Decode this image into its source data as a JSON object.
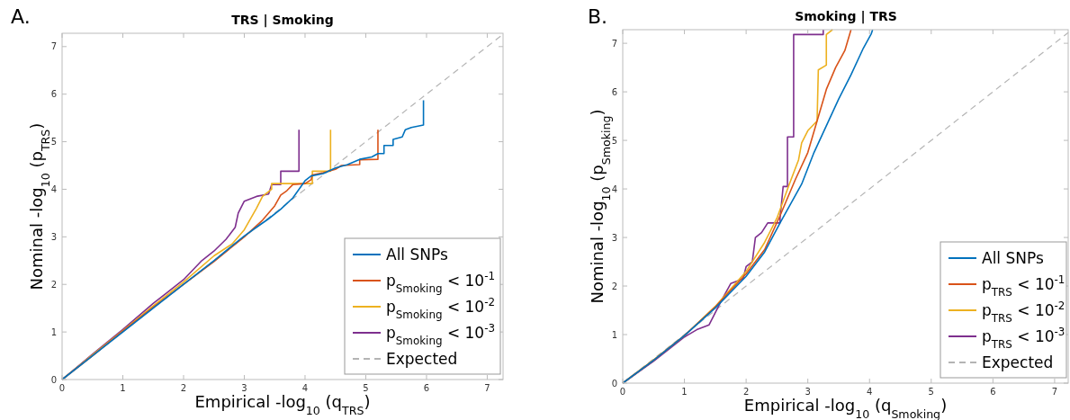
{
  "chart_data": [
    {
      "type": "step",
      "title": "TRS | Smoking",
      "xlabel": "Empirical -log$_{10}$ (q$_{TRS}$)",
      "ylabel": "Nominal -log$_{10}$ (p$_{TRS}$)",
      "annotations": [
        "A."
      ],
      "xlim": [
        0,
        7.26
      ],
      "ylim": [
        0,
        7.28
      ],
      "xticks": [
        0,
        1,
        2,
        3,
        4,
        5,
        6,
        7
      ],
      "yticks": [
        0,
        1,
        2,
        3,
        4,
        5,
        6,
        7
      ],
      "legend": "bottom right",
      "series": [
        {
          "name": "All SNPs",
          "color": "#0072bd",
          "x": [
            0,
            0.5,
            1,
            1.5,
            2,
            2.5,
            3,
            3.2,
            3.4,
            3.6,
            3.8,
            3.9,
            4.0,
            4.1,
            4.3,
            4.5,
            4.7,
            4.9,
            5.1,
            5.2,
            5.3,
            5.3,
            5.45,
            5.45,
            5.6,
            5.65,
            5.75,
            5.95,
            5.95
          ],
          "values": [
            0,
            0.5,
            1,
            1.5,
            2,
            2.5,
            3.02,
            3.2,
            3.38,
            3.58,
            3.82,
            4.0,
            4.18,
            4.28,
            4.33,
            4.45,
            4.52,
            4.63,
            4.68,
            4.75,
            4.75,
            4.92,
            4.92,
            5.05,
            5.1,
            5.25,
            5.3,
            5.35,
            5.87
          ]
        },
        {
          "name": "p$_{Smoking}$ < 10$^{-1}$",
          "color": "#d95319",
          "x": [
            0,
            0.5,
            1,
            1.5,
            2,
            2.5,
            3,
            3.3,
            3.5,
            3.6,
            3.7,
            3.8,
            4.0,
            4.1,
            4.12,
            4.3,
            4.5,
            4.6,
            4.9,
            4.9,
            5.2,
            5.2
          ],
          "values": [
            0,
            0.5,
            1.02,
            1.52,
            2.0,
            2.48,
            3.0,
            3.35,
            3.65,
            3.88,
            3.97,
            4.1,
            4.12,
            4.2,
            4.3,
            4.35,
            4.42,
            4.5,
            4.52,
            4.62,
            4.63,
            5.25
          ]
        },
        {
          "name": "p$_{Smoking}$ < 10$^{-2}$",
          "color": "#edb120",
          "x": [
            0,
            0.5,
            1,
            1.5,
            2,
            2.5,
            2.8,
            3.0,
            3.2,
            3.3,
            3.45,
            3.45,
            4.12,
            4.12,
            4.42,
            4.42
          ],
          "values": [
            0,
            0.52,
            1.03,
            1.55,
            2.05,
            2.6,
            2.85,
            3.15,
            3.6,
            3.85,
            4.0,
            4.12,
            4.12,
            4.38,
            4.38,
            5.25
          ]
        },
        {
          "name": "p$_{Smoking}$ < 10$^{-3}$",
          "color": "#7e2f8e",
          "x": [
            0,
            0.5,
            1,
            1.5,
            1.7,
            2,
            2.3,
            2.5,
            2.7,
            2.85,
            2.9,
            3.0,
            3.2,
            3.4,
            3.45,
            3.6,
            3.6,
            3.9,
            3.9
          ],
          "values": [
            0,
            0.53,
            1.05,
            1.6,
            1.8,
            2.1,
            2.5,
            2.7,
            2.95,
            3.2,
            3.5,
            3.75,
            3.85,
            3.9,
            4.1,
            4.1,
            4.38,
            4.38,
            5.25
          ]
        },
        {
          "name": "Expected",
          "color": "#b4b4b4",
          "line_style": "dashed",
          "x": [
            0,
            7.26
          ],
          "values": [
            0,
            7.26
          ]
        }
      ]
    },
    {
      "type": "step",
      "title": "Smoking | TRS",
      "xlabel": "Empirical -log$_{10}$ (q$_{Smoking}$)",
      "ylabel": "Nominal -log$_{10}$ (p$_{Smoking}$)",
      "annotations": [
        "B."
      ],
      "xlim": [
        0,
        7.22
      ],
      "ylim": [
        0,
        7.28
      ],
      "xticks": [
        0,
        1,
        2,
        3,
        4,
        5,
        6,
        7
      ],
      "yticks": [
        0,
        1,
        2,
        3,
        4,
        5,
        6,
        7
      ],
      "legend": "bottom right",
      "series": [
        {
          "name": "All SNPs",
          "color": "#0072bd",
          "x": [
            0,
            0.5,
            1,
            1.5,
            2,
            2.3,
            2.55,
            2.9,
            3.1,
            3.3,
            3.5,
            3.7,
            3.9,
            4.03,
            4.05
          ],
          "values": [
            0,
            0.47,
            0.98,
            1.55,
            2.2,
            2.7,
            3.3,
            4.1,
            4.75,
            5.3,
            5.85,
            6.35,
            6.9,
            7.2,
            7.28
          ]
        },
        {
          "name": "p$_{TRS}$ < 10$^{-1}$",
          "color": "#d95319",
          "x": [
            0,
            0.5,
            1,
            1.5,
            2,
            2.3,
            2.55,
            2.8,
            3.0,
            3.15,
            3.3,
            3.45,
            3.6,
            3.7
          ],
          "values": [
            0,
            0.47,
            0.98,
            1.57,
            2.25,
            2.75,
            3.45,
            4.2,
            4.75,
            5.4,
            6.05,
            6.5,
            6.85,
            7.28
          ]
        },
        {
          "name": "p$_{TRS}$ < 10$^{-2}$",
          "color": "#edb120",
          "x": [
            0,
            0.5,
            1,
            1.5,
            2,
            2.3,
            2.5,
            2.7,
            2.85,
            2.9,
            3.0,
            3.15,
            3.17,
            3.3,
            3.3,
            3.4
          ],
          "values": [
            0,
            0.48,
            0.98,
            1.58,
            2.3,
            2.9,
            3.4,
            4.1,
            4.6,
            4.95,
            5.2,
            5.4,
            6.45,
            6.55,
            7.18,
            7.28
          ]
        },
        {
          "name": "p$_{TRS}$ < 10$^{-3}$",
          "color": "#7e2f8e",
          "x": [
            0,
            0.5,
            1,
            1.2,
            1.4,
            1.5,
            1.6,
            1.75,
            1.95,
            2.0,
            2.1,
            2.15,
            2.25,
            2.35,
            2.55,
            2.55,
            2.6,
            2.67,
            2.67,
            2.77,
            2.77,
            3.25,
            3.25
          ],
          "values": [
            0,
            0.45,
            0.95,
            1.1,
            1.2,
            1.45,
            1.7,
            2.05,
            2.15,
            2.4,
            2.5,
            3.0,
            3.1,
            3.3,
            3.3,
            3.4,
            4.05,
            4.05,
            5.07,
            5.07,
            7.18,
            7.18,
            7.28
          ]
        },
        {
          "name": "Expected",
          "color": "#b4b4b4",
          "line_style": "dashed",
          "x": [
            0,
            7.22
          ],
          "values": [
            0,
            7.22
          ]
        }
      ]
    }
  ]
}
